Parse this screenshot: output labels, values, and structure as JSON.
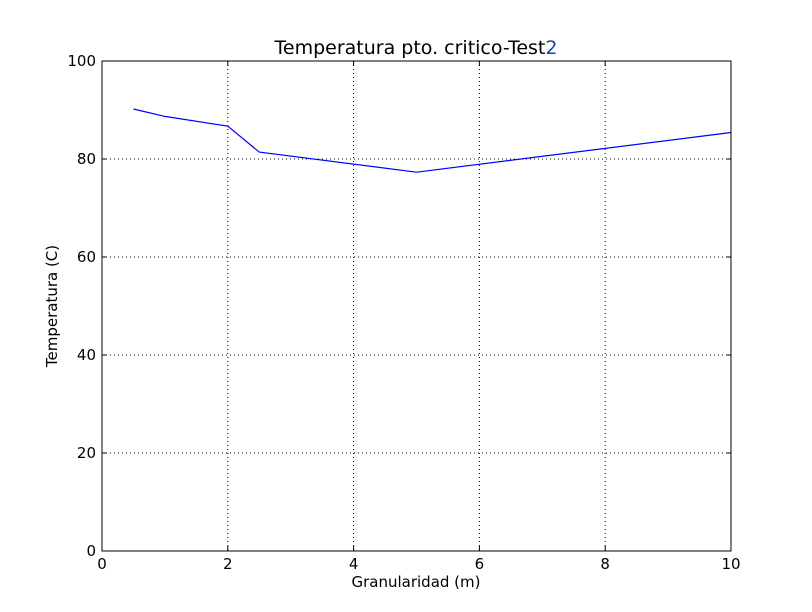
{
  "chart_data": {
    "type": "line",
    "title": "Temperatura pto. critico-Test",
    "title_suffix": "2",
    "xlabel": "Granularidad (m)",
    "ylabel": "Temperatura (C)",
    "xlim": [
      0,
      10
    ],
    "ylim": [
      0,
      100
    ],
    "xticks": [
      0,
      2,
      4,
      6,
      8,
      10
    ],
    "yticks": [
      0,
      20,
      40,
      60,
      80,
      100
    ],
    "grid": true,
    "series": [
      {
        "color": "#0000ff",
        "x": [
          0.5,
          1,
          2,
          2.5,
          5,
          10
        ],
        "y": [
          90.2,
          88.7,
          86.7,
          81.4,
          77.3,
          85.4
        ]
      }
    ]
  }
}
